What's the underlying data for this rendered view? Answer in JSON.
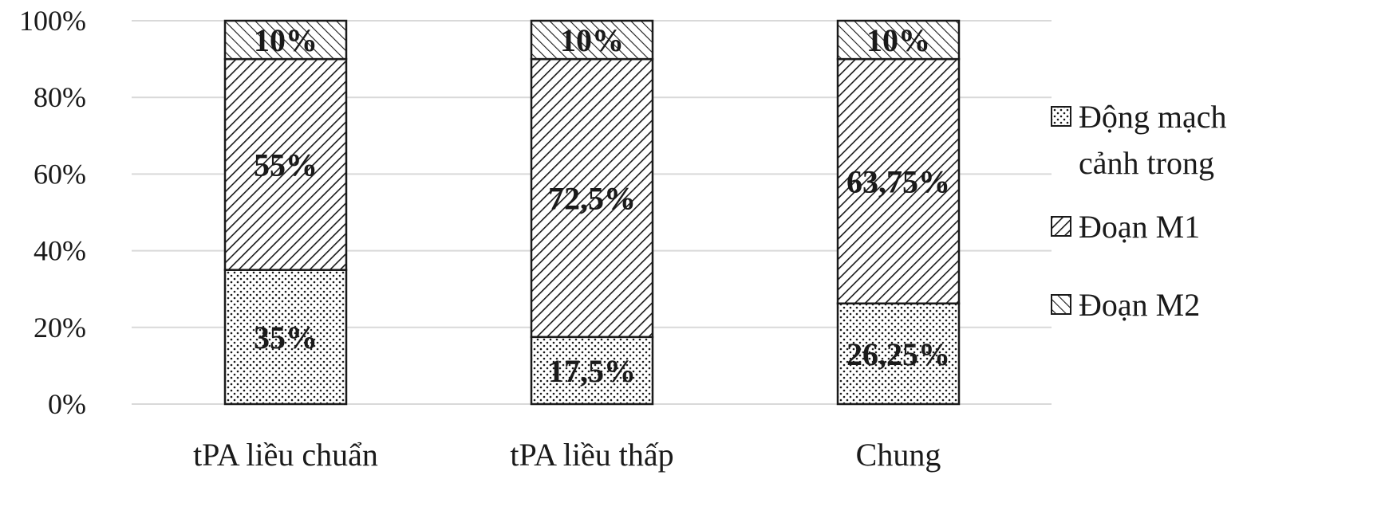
{
  "chart_data": {
    "type": "bar",
    "stacked": true,
    "categories": [
      "tPA liều chuẩn",
      "tPA liều thấp",
      "Chung"
    ],
    "series": [
      {
        "name": "Động mạch cảnh trong",
        "values": [
          35,
          17.5,
          26.25
        ],
        "labels": [
          "35%",
          "17,5%",
          "26,25%"
        ],
        "pattern": "dots"
      },
      {
        "name": "Đoạn M1",
        "values": [
          55,
          72.5,
          63.75
        ],
        "labels": [
          "55%",
          "72,5%",
          "63,75%"
        ],
        "pattern": "hatch-back"
      },
      {
        "name": "Đoạn M2",
        "values": [
          10,
          10,
          10
        ],
        "labels": [
          "10%",
          "10%",
          "10%"
        ],
        "pattern": "hatch-forward"
      }
    ],
    "yticks": [
      "0%",
      "20%",
      "40%",
      "60%",
      "80%",
      "100%"
    ],
    "ylim": [
      0,
      100
    ],
    "grid": true,
    "legend_position": "right",
    "legend_lines": [
      [
        "Động mạch",
        "cảnh trong"
      ],
      [
        "Đoạn M1"
      ],
      [
        "Đoạn M2"
      ]
    ],
    "colors": {
      "stroke": "#1a1a1a",
      "grid": "#d9d9d9",
      "fill": "#ffffff"
    }
  }
}
